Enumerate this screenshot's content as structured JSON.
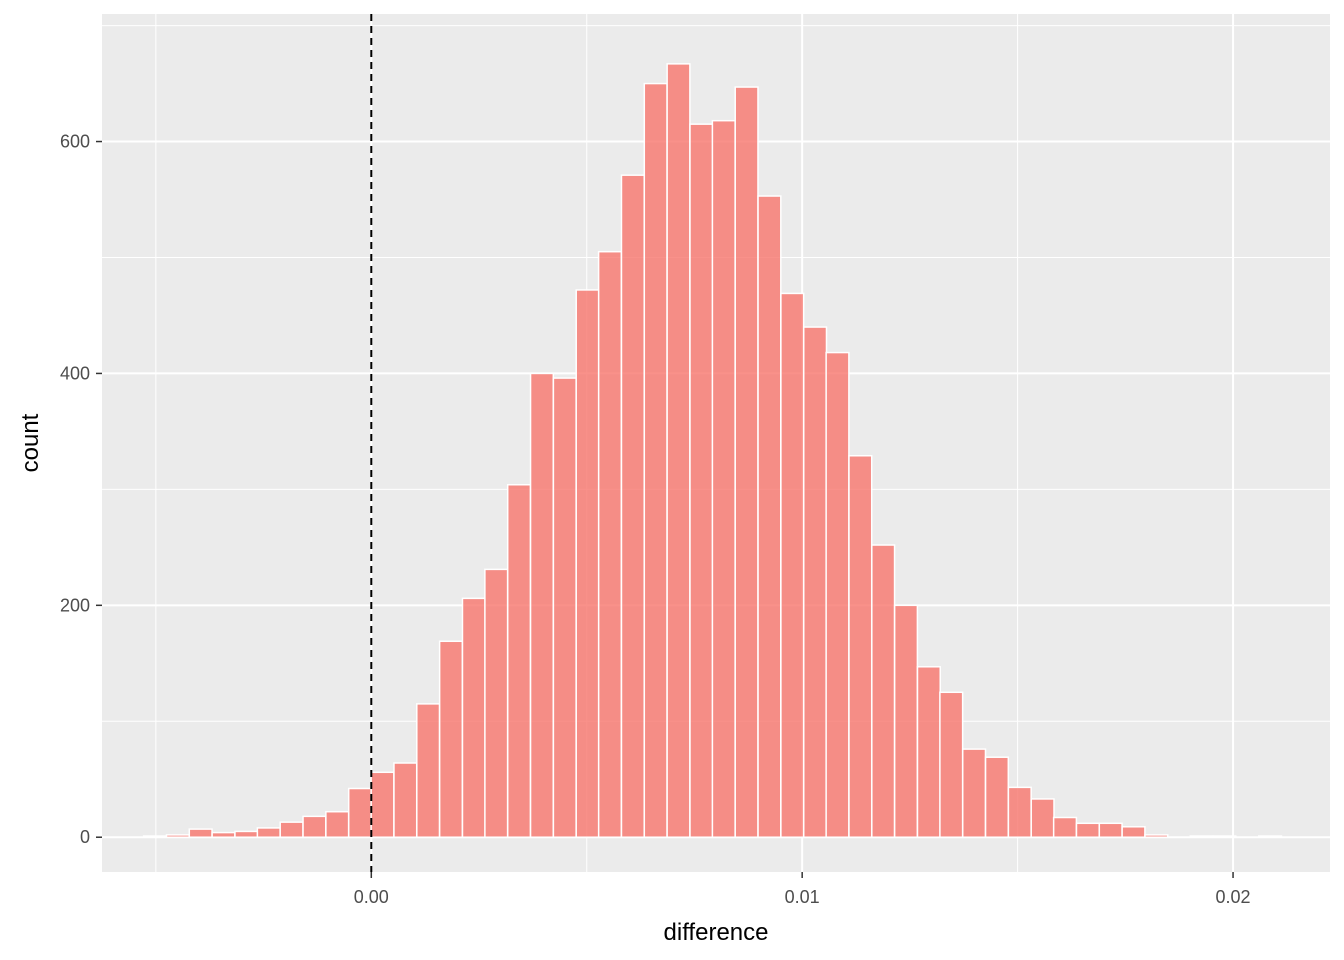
{
  "chart_data": {
    "type": "bar",
    "subtype": "histogram",
    "title": "",
    "xlabel": "difference",
    "ylabel": "count",
    "xlim": [
      -0.00625,
      0.02225
    ],
    "ylim": [
      -30,
      710
    ],
    "grid": true,
    "reference_line": {
      "x": 0.0,
      "style": "dashed",
      "color": "#000000"
    },
    "x_ticks": [
      {
        "value": 0.0,
        "label": "0.00"
      },
      {
        "value": 0.01,
        "label": "0.01"
      },
      {
        "value": 0.02,
        "label": "0.02"
      }
    ],
    "y_ticks": [
      {
        "value": 0,
        "label": "0"
      },
      {
        "value": 200,
        "label": "200"
      },
      {
        "value": 400,
        "label": "400"
      },
      {
        "value": 600,
        "label": "600"
      }
    ],
    "bar_color": "#F8766D",
    "bar_outline": "#ffffff",
    "panel_background": "#EBEBEB",
    "bin_width": 0.000528,
    "bins": [
      {
        "x": -0.00502,
        "count": 1
      },
      {
        "x": -0.00449,
        "count": 2
      },
      {
        "x": -0.00396,
        "count": 7
      },
      {
        "x": -0.00343,
        "count": 4
      },
      {
        "x": -0.0029,
        "count": 5
      },
      {
        "x": -0.00238,
        "count": 8
      },
      {
        "x": -0.00185,
        "count": 13
      },
      {
        "x": -0.00132,
        "count": 18
      },
      {
        "x": -0.00079,
        "count": 22
      },
      {
        "x": -0.00026,
        "count": 42
      },
      {
        "x": 0.00026,
        "count": 56
      },
      {
        "x": 0.00079,
        "count": 64
      },
      {
        "x": 0.00132,
        "count": 115
      },
      {
        "x": 0.00185,
        "count": 169
      },
      {
        "x": 0.00238,
        "count": 206
      },
      {
        "x": 0.0029,
        "count": 231
      },
      {
        "x": 0.00343,
        "count": 304
      },
      {
        "x": 0.00396,
        "count": 400
      },
      {
        "x": 0.00449,
        "count": 396
      },
      {
        "x": 0.00502,
        "count": 472
      },
      {
        "x": 0.00554,
        "count": 505
      },
      {
        "x": 0.00607,
        "count": 571
      },
      {
        "x": 0.0066,
        "count": 650
      },
      {
        "x": 0.00713,
        "count": 667
      },
      {
        "x": 0.00766,
        "count": 615
      },
      {
        "x": 0.00818,
        "count": 618
      },
      {
        "x": 0.00871,
        "count": 647
      },
      {
        "x": 0.00924,
        "count": 553
      },
      {
        "x": 0.00977,
        "count": 469
      },
      {
        "x": 0.0103,
        "count": 440
      },
      {
        "x": 0.01082,
        "count": 418
      },
      {
        "x": 0.01135,
        "count": 329
      },
      {
        "x": 0.01188,
        "count": 252
      },
      {
        "x": 0.01241,
        "count": 200
      },
      {
        "x": 0.01294,
        "count": 147
      },
      {
        "x": 0.01346,
        "count": 125
      },
      {
        "x": 0.01399,
        "count": 76
      },
      {
        "x": 0.01452,
        "count": 69
      },
      {
        "x": 0.01505,
        "count": 43
      },
      {
        "x": 0.01558,
        "count": 33
      },
      {
        "x": 0.0161,
        "count": 17
      },
      {
        "x": 0.01663,
        "count": 12
      },
      {
        "x": 0.01716,
        "count": 12
      },
      {
        "x": 0.01769,
        "count": 9
      },
      {
        "x": 0.01822,
        "count": 2
      },
      {
        "x": 0.01874,
        "count": 0
      },
      {
        "x": 0.01927,
        "count": 1
      },
      {
        "x": 0.0198,
        "count": 1
      },
      {
        "x": 0.02033,
        "count": 0
      },
      {
        "x": 0.02086,
        "count": 1
      }
    ]
  }
}
